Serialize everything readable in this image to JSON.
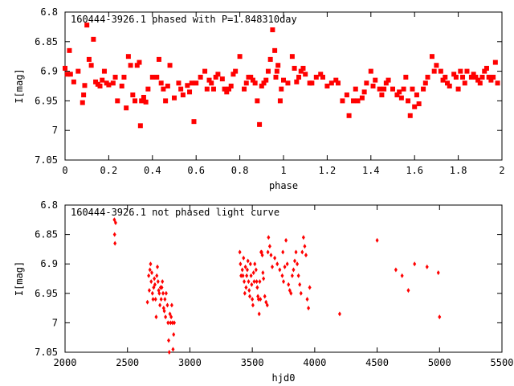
{
  "colors": {
    "marker": "#ff0000",
    "axis": "#000000",
    "background": "#ffffff"
  },
  "chart_data": [
    {
      "type": "scatter",
      "title": "160444-3926.1 phased with P=1.848310day",
      "xlabel": "phase",
      "ylabel": "I[mag]",
      "xlim": [
        0,
        2
      ],
      "ylim": [
        6.8,
        7.05
      ],
      "y_inverted": true,
      "grid": false,
      "legend": "none",
      "marker": "filled-square",
      "xticks": [
        0,
        0.2,
        0.4,
        0.6,
        0.8,
        1,
        1.2,
        1.4,
        1.6,
        1.8,
        2
      ],
      "xtick_labels": [
        "0",
        "0.2",
        "0.4",
        "0.6",
        "0.8",
        "1",
        "1.2",
        "1.4",
        "1.6",
        "1.8",
        "2"
      ],
      "yticks": [
        6.8,
        6.85,
        6.9,
        6.95,
        7,
        7.05
      ],
      "ytick_labels": [
        "6.8",
        "6.85",
        "6.9",
        "6.95",
        "7",
        "7.05"
      ],
      "points": [
        [
          0.0,
          6.895
        ],
        [
          0.01,
          6.905
        ],
        [
          0.02,
          6.865
        ],
        [
          0.025,
          6.905
        ],
        [
          0.04,
          6.918
        ],
        [
          0.06,
          6.9
        ],
        [
          0.08,
          6.953
        ],
        [
          0.085,
          6.94
        ],
        [
          0.09,
          6.924
        ],
        [
          0.1,
          6.822
        ],
        [
          0.11,
          6.88
        ],
        [
          0.12,
          6.89
        ],
        [
          0.13,
          6.846
        ],
        [
          0.14,
          6.918
        ],
        [
          0.15,
          6.922
        ],
        [
          0.17,
          6.915
        ],
        [
          0.18,
          6.9
        ],
        [
          0.19,
          6.92
        ],
        [
          0.2,
          6.923
        ],
        [
          0.22,
          6.92
        ],
        [
          0.24,
          6.95
        ],
        [
          0.26,
          6.925
        ],
        [
          0.27,
          6.91
        ],
        [
          0.28,
          6.962
        ],
        [
          0.29,
          6.875
        ],
        [
          0.3,
          6.89
        ],
        [
          0.31,
          6.94
        ],
        [
          0.32,
          6.95
        ],
        [
          0.33,
          6.89
        ],
        [
          0.34,
          6.885
        ],
        [
          0.345,
          6.992
        ],
        [
          0.35,
          6.95
        ],
        [
          0.36,
          6.944
        ],
        [
          0.37,
          6.952
        ],
        [
          0.38,
          6.93
        ],
        [
          0.4,
          6.91
        ],
        [
          0.42,
          6.91
        ],
        [
          0.44,
          6.92
        ],
        [
          0.45,
          6.93
        ],
        [
          0.46,
          6.95
        ],
        [
          0.48,
          6.89
        ],
        [
          0.5,
          6.945
        ],
        [
          0.52,
          6.92
        ],
        [
          0.54,
          6.94
        ],
        [
          0.56,
          6.924
        ],
        [
          0.58,
          6.92
        ],
        [
          0.59,
          6.985
        ],
        [
          0.6,
          6.92
        ],
        [
          0.62,
          6.91
        ],
        [
          0.64,
          6.9
        ],
        [
          0.65,
          6.93
        ],
        [
          0.66,
          6.915
        ],
        [
          0.68,
          6.93
        ],
        [
          0.7,
          6.905
        ],
        [
          0.72,
          6.913
        ],
        [
          0.74,
          6.935
        ],
        [
          0.75,
          6.93
        ],
        [
          0.76,
          6.925
        ],
        [
          0.78,
          6.9
        ],
        [
          0.8,
          6.875
        ],
        [
          0.82,
          6.93
        ],
        [
          0.84,
          6.91
        ],
        [
          0.85,
          6.91
        ],
        [
          0.86,
          6.915
        ],
        [
          0.87,
          6.92
        ],
        [
          0.88,
          6.95
        ],
        [
          0.89,
          6.99
        ],
        [
          0.9,
          6.925
        ],
        [
          0.91,
          6.92
        ],
        [
          0.92,
          6.915
        ],
        [
          0.93,
          6.9
        ],
        [
          0.94,
          6.88
        ],
        [
          0.95,
          6.83
        ],
        [
          0.96,
          6.865
        ],
        [
          0.965,
          6.91
        ],
        [
          0.975,
          6.89
        ],
        [
          0.985,
          6.95
        ],
        [
          1.0,
          6.915
        ],
        [
          1.02,
          6.92
        ],
        [
          1.04,
          6.875
        ],
        [
          1.05,
          6.895
        ],
        [
          1.06,
          6.918
        ],
        [
          1.08,
          6.9
        ],
        [
          1.1,
          6.905
        ],
        [
          1.12,
          6.92
        ],
        [
          1.15,
          6.91
        ],
        [
          1.18,
          6.91
        ],
        [
          1.2,
          6.925
        ],
        [
          1.22,
          6.92
        ],
        [
          1.25,
          6.92
        ],
        [
          1.27,
          6.95
        ],
        [
          1.3,
          6.975
        ],
        [
          1.32,
          6.95
        ],
        [
          1.34,
          6.95
        ],
        [
          1.36,
          6.945
        ],
        [
          1.38,
          6.92
        ],
        [
          1.4,
          6.9
        ],
        [
          1.42,
          6.915
        ],
        [
          1.44,
          6.93
        ],
        [
          1.46,
          6.93
        ],
        [
          1.48,
          6.915
        ],
        [
          1.5,
          6.93
        ],
        [
          1.52,
          6.94
        ],
        [
          1.54,
          6.945
        ],
        [
          1.55,
          6.93
        ],
        [
          1.56,
          6.91
        ],
        [
          1.57,
          6.95
        ],
        [
          1.58,
          6.975
        ],
        [
          1.6,
          6.96
        ],
        [
          1.62,
          6.955
        ],
        [
          1.64,
          6.93
        ],
        [
          1.66,
          6.91
        ],
        [
          1.68,
          6.875
        ],
        [
          1.7,
          6.89
        ],
        [
          1.72,
          6.9
        ],
        [
          1.74,
          6.91
        ],
        [
          1.76,
          6.925
        ],
        [
          1.78,
          6.905
        ],
        [
          1.8,
          6.93
        ],
        [
          1.82,
          6.91
        ],
        [
          1.84,
          6.9
        ],
        [
          1.86,
          6.91
        ],
        [
          1.88,
          6.91
        ],
        [
          1.9,
          6.92
        ],
        [
          1.92,
          6.9
        ],
        [
          1.94,
          6.91
        ],
        [
          1.95,
          6.915
        ],
        [
          1.96,
          6.91
        ],
        [
          1.97,
          6.885
        ],
        [
          1.98,
          6.92
        ],
        [
          0.16,
          6.925
        ],
        [
          0.23,
          6.91
        ],
        [
          0.43,
          6.88
        ],
        [
          0.47,
          6.925
        ],
        [
          0.53,
          6.93
        ],
        [
          0.57,
          6.935
        ],
        [
          0.67,
          6.92
        ],
        [
          0.69,
          6.91
        ],
        [
          0.73,
          6.93
        ],
        [
          0.77,
          6.905
        ],
        [
          0.83,
          6.92
        ],
        [
          0.97,
          6.9
        ],
        [
          0.99,
          6.93
        ],
        [
          1.07,
          6.91
        ],
        [
          1.09,
          6.895
        ],
        [
          1.13,
          6.92
        ],
        [
          1.17,
          6.905
        ],
        [
          1.24,
          6.915
        ],
        [
          1.29,
          6.94
        ],
        [
          1.33,
          6.93
        ],
        [
          1.37,
          6.935
        ],
        [
          1.41,
          6.925
        ],
        [
          1.45,
          6.94
        ],
        [
          1.47,
          6.92
        ],
        [
          1.53,
          6.935
        ],
        [
          1.59,
          6.93
        ],
        [
          1.61,
          6.94
        ],
        [
          1.65,
          6.92
        ],
        [
          1.69,
          6.9
        ],
        [
          1.73,
          6.915
        ],
        [
          1.75,
          6.92
        ],
        [
          1.79,
          6.91
        ],
        [
          1.81,
          6.9
        ],
        [
          1.83,
          6.92
        ],
        [
          1.87,
          6.905
        ],
        [
          1.89,
          6.915
        ],
        [
          1.91,
          6.91
        ],
        [
          1.93,
          6.895
        ]
      ]
    },
    {
      "type": "scatter",
      "title": "160444-3926.1 not phased light curve",
      "xlabel": "hjd0",
      "ylabel": "I[mag]",
      "xlim": [
        2000,
        5500
      ],
      "ylim": [
        6.8,
        7.05
      ],
      "y_inverted": true,
      "grid": false,
      "legend": "none",
      "marker": "diamond",
      "xticks": [
        2000,
        2500,
        3000,
        3500,
        4000,
        4500,
        5000,
        5500
      ],
      "xtick_labels": [
        "2000",
        "2500",
        "3000",
        "3500",
        "4000",
        "4500",
        "5000",
        "5500"
      ],
      "yticks": [
        6.8,
        6.85,
        6.9,
        6.95,
        7,
        7.05
      ],
      "ytick_labels": [
        "6.8",
        "6.85",
        "6.9",
        "6.95",
        "7",
        "7.05"
      ],
      "points": [
        [
          2395,
          6.825
        ],
        [
          2397,
          6.85
        ],
        [
          2400,
          6.865
        ],
        [
          2405,
          6.83
        ],
        [
          2670,
          6.92
        ],
        [
          2680,
          6.91
        ],
        [
          2690,
          6.93
        ],
        [
          2700,
          6.95
        ],
        [
          2705,
          6.96
        ],
        [
          2710,
          6.94
        ],
        [
          2715,
          6.925
        ],
        [
          2720,
          6.935
        ],
        [
          2725,
          6.96
        ],
        [
          2730,
          6.99
        ],
        [
          2735,
          6.92
        ],
        [
          2740,
          6.905
        ],
        [
          2745,
          6.93
        ],
        [
          2750,
          6.945
        ],
        [
          2755,
          6.95
        ],
        [
          2760,
          6.97
        ],
        [
          2765,
          6.94
        ],
        [
          2770,
          6.96
        ],
        [
          2775,
          6.94
        ],
        [
          2780,
          6.93
        ],
        [
          2785,
          6.95
        ],
        [
          2790,
          6.975
        ],
        [
          2795,
          6.98
        ],
        [
          2800,
          6.96
        ],
        [
          2805,
          6.99
        ],
        [
          2810,
          6.95
        ],
        [
          2820,
          6.97
        ],
        [
          2825,
          7.0
        ],
        [
          2830,
          7.03
        ],
        [
          2835,
          7.05
        ],
        [
          2840,
          6.985
        ],
        [
          2845,
          7.0
        ],
        [
          2850,
          6.99
        ],
        [
          2855,
          6.97
        ],
        [
          2860,
          7.0
        ],
        [
          2865,
          7.045
        ],
        [
          2870,
          7.02
        ],
        [
          2875,
          7.0
        ],
        [
          2660,
          6.965
        ],
        [
          2675,
          6.945
        ],
        [
          2685,
          6.9
        ],
        [
          2695,
          6.915
        ],
        [
          3400,
          6.88
        ],
        [
          3405,
          6.9
        ],
        [
          3410,
          6.92
        ],
        [
          3420,
          6.91
        ],
        [
          3425,
          6.92
        ],
        [
          3430,
          6.89
        ],
        [
          3435,
          6.93
        ],
        [
          3440,
          6.95
        ],
        [
          3445,
          6.905
        ],
        [
          3450,
          6.94
        ],
        [
          3455,
          6.92
        ],
        [
          3460,
          6.91
        ],
        [
          3465,
          6.895
        ],
        [
          3470,
          6.93
        ],
        [
          3475,
          6.945
        ],
        [
          3480,
          6.955
        ],
        [
          3485,
          6.9
        ],
        [
          3490,
          6.92
        ],
        [
          3495,
          6.935
        ],
        [
          3500,
          6.96
        ],
        [
          3505,
          6.97
        ],
        [
          3510,
          6.915
        ],
        [
          3515,
          6.93
        ],
        [
          3520,
          6.9
        ],
        [
          3530,
          6.91
        ],
        [
          3535,
          6.93
        ],
        [
          3540,
          6.94
        ],
        [
          3545,
          6.955
        ],
        [
          3550,
          6.96
        ],
        [
          3555,
          6.985
        ],
        [
          3560,
          6.93
        ],
        [
          3565,
          6.96
        ],
        [
          3570,
          6.88
        ],
        [
          3575,
          6.88
        ],
        [
          3580,
          6.885
        ],
        [
          3585,
          6.915
        ],
        [
          3590,
          6.925
        ],
        [
          3600,
          6.955
        ],
        [
          3610,
          6.965
        ],
        [
          3620,
          6.97
        ],
        [
          3625,
          6.88
        ],
        [
          3630,
          6.855
        ],
        [
          3640,
          6.87
        ],
        [
          3650,
          6.885
        ],
        [
          3660,
          6.905
        ],
        [
          3680,
          6.89
        ],
        [
          3700,
          6.9
        ],
        [
          3720,
          6.91
        ],
        [
          3740,
          6.92
        ],
        [
          3745,
          6.88
        ],
        [
          3750,
          6.93
        ],
        [
          3760,
          6.905
        ],
        [
          3770,
          6.86
        ],
        [
          3780,
          6.9
        ],
        [
          3790,
          6.935
        ],
        [
          3800,
          6.945
        ],
        [
          3810,
          6.95
        ],
        [
          3820,
          6.92
        ],
        [
          3830,
          6.91
        ],
        [
          3840,
          6.895
        ],
        [
          3850,
          6.88
        ],
        [
          3860,
          6.9
        ],
        [
          3870,
          6.92
        ],
        [
          3880,
          6.935
        ],
        [
          3890,
          6.95
        ],
        [
          3900,
          6.88
        ],
        [
          3910,
          6.855
        ],
        [
          3920,
          6.87
        ],
        [
          3930,
          6.885
        ],
        [
          3940,
          6.96
        ],
        [
          3950,
          6.975
        ],
        [
          3960,
          6.94
        ],
        [
          4200,
          6.985
        ],
        [
          4500,
          6.86
        ],
        [
          4650,
          6.91
        ],
        [
          4700,
          6.92
        ],
        [
          4750,
          6.945
        ],
        [
          4800,
          6.9
        ],
        [
          4900,
          6.905
        ],
        [
          4990,
          6.915
        ],
        [
          5000,
          6.99
        ]
      ]
    }
  ]
}
